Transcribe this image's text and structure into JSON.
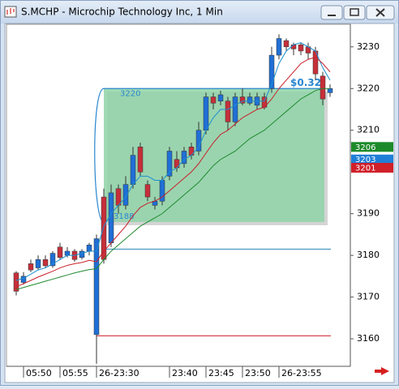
{
  "chart_data": {
    "type": "candlestick",
    "title": "S.MCHP - Microchip Technology Inc, 1 Min",
    "categories": [
      null,
      "05:50",
      null,
      null,
      null,
      null,
      "05:55",
      null,
      null,
      null,
      null,
      "26-23:30",
      null,
      null,
      null,
      null,
      null,
      null,
      null,
      null,
      null,
      "23:40",
      null,
      null,
      null,
      null,
      "23:45",
      null,
      null,
      null,
      null,
      "23:50",
      null,
      null,
      null,
      null,
      "26-23:55",
      null,
      null,
      null,
      null,
      null,
      null,
      null
    ],
    "open": [
      3175.8,
      3173.5,
      3178,
      3177,
      3179,
      3177.5,
      3182,
      3180,
      3181,
      3179.5,
      3181,
      3161,
      3194,
      3183,
      3196,
      3192,
      3197,
      3206,
      3197,
      3192,
      3193,
      3199,
      3203,
      3202,
      3206,
      3205,
      3210,
      3218,
      3217,
      3217,
      3212,
      3218,
      3216.5,
      3216,
      3218,
      3220,
      3228,
      3231.5,
      3230.5,
      3230.5,
      3230,
      3229,
      3223,
      3219
    ],
    "high": [
      3176.2,
      3176,
      3179,
      3180,
      3180,
      3181,
      3183,
      3182,
      3181.5,
      3181.5,
      3183,
      3185,
      3196,
      3197,
      3197,
      3199,
      3206,
      3207,
      3198,
      3194,
      3199,
      3206,
      3205,
      3206,
      3207,
      3212,
      3219,
      3219,
      3219.5,
      3218,
      3219,
      3220,
      3219,
      3219,
      3219,
      3230,
      3233,
      3232,
      3231,
      3231,
      3231,
      3230,
      3224,
      3221
    ],
    "low": [
      3170.4,
      3173,
      3176,
      3176.5,
      3177,
      3177,
      3179,
      3179.5,
      3178.5,
      3179,
      3180,
      3154,
      3178,
      3182,
      3190,
      3191,
      3196,
      3199,
      3193,
      3191,
      3192,
      3198,
      3200,
      3201,
      3203,
      3204,
      3209,
      3215,
      3216,
      3210,
      3211,
      3216,
      3216,
      3215,
      3215,
      3219,
      3227,
      3229,
      3228,
      3228,
      3227,
      3222,
      3216,
      3218
    ],
    "close": [
      3171.4,
      3175,
      3176.5,
      3179,
      3177.5,
      3180.5,
      3179.5,
      3181,
      3179,
      3181,
      3182.5,
      3184,
      3179,
      3195,
      3192,
      3197,
      3204,
      3200,
      3194,
      3193,
      3198,
      3205,
      3201,
      3205,
      3204,
      3210,
      3218,
      3216.5,
      3218.5,
      3212,
      3218,
      3216.5,
      3218,
      3218,
      3215.5,
      3228,
      3232,
      3230,
      3229.5,
      3229,
      3228.5,
      3223.5,
      3217.5,
      3220
    ],
    "up_color": "#1f6fd6",
    "down_color": "#c62f3a",
    "moving_averages": [
      {
        "color": "#1a8fd0",
        "values": [
          3174,
          3174.5,
          3175.5,
          3176.5,
          3177,
          3178,
          3179,
          3180,
          3180,
          3180.5,
          3181,
          3181,
          3187,
          3190,
          3192,
          3194,
          3197,
          3199,
          3199,
          3198,
          3198,
          3200,
          3201,
          3203,
          3204,
          3206,
          3210,
          3213,
          3215,
          3215,
          3216,
          3217,
          3217,
          3217,
          3217,
          3221,
          3226,
          3229,
          3230.5,
          3231,
          3230,
          3229,
          3225,
          3222
        ]
      },
      {
        "color": "#c8202a",
        "values": [
          3172.5,
          3173.2,
          3174,
          3174.8,
          3175.5,
          3176.2,
          3177,
          3177.6,
          3178,
          3178.3,
          3178.8,
          3178.5,
          3181,
          3183,
          3185,
          3187,
          3189.5,
          3191.5,
          3192.5,
          3193,
          3194,
          3195.5,
          3197,
          3198.5,
          3200,
          3202,
          3204.5,
          3207,
          3209,
          3210,
          3211.5,
          3213,
          3214,
          3215,
          3215.5,
          3217.5,
          3220,
          3222,
          3224,
          3226,
          3227,
          3227.5,
          3226,
          3224
        ]
      },
      {
        "color": "#1f8a2e",
        "values": [
          3171.8,
          3172.3,
          3172.8,
          3173.3,
          3173.8,
          3174.3,
          3174.8,
          3175.3,
          3175.8,
          3176.2,
          3176.6,
          3176.8,
          3179,
          3181,
          3182.5,
          3184,
          3185.5,
          3187,
          3188,
          3189,
          3190,
          3191.5,
          3193,
          3194.5,
          3196,
          3197.5,
          3199.5,
          3201.5,
          3203,
          3204,
          3205,
          3206.5,
          3208,
          3209,
          3210,
          3211.5,
          3213,
          3214.5,
          3216,
          3217.5,
          3218.5,
          3219.5,
          3220,
          3220
        ]
      }
    ],
    "ylim": [
      3153.4,
      3235.4
    ],
    "yticks": [
      3160,
      3170,
      3180,
      3190,
      3210,
      3220,
      3230
    ],
    "price_badges": [
      {
        "value": 3206,
        "label": "3206",
        "color": "#1c8a2a"
      },
      {
        "value": 3203,
        "label": "3203",
        "color": "#1f7fd8"
      },
      {
        "value": 3201,
        "label": "3201",
        "color": "#d0202a"
      }
    ],
    "levels": [
      {
        "value": 3181.5,
        "color": "#2a86b8"
      },
      {
        "value": 3160.7,
        "color": "#d0202a"
      }
    ],
    "range_box": {
      "top": 3220,
      "bottom": 3188,
      "top_label": "3220",
      "bottom_label": "3188",
      "span_label": "$0.32",
      "color": "#8fd4a8"
    }
  }
}
